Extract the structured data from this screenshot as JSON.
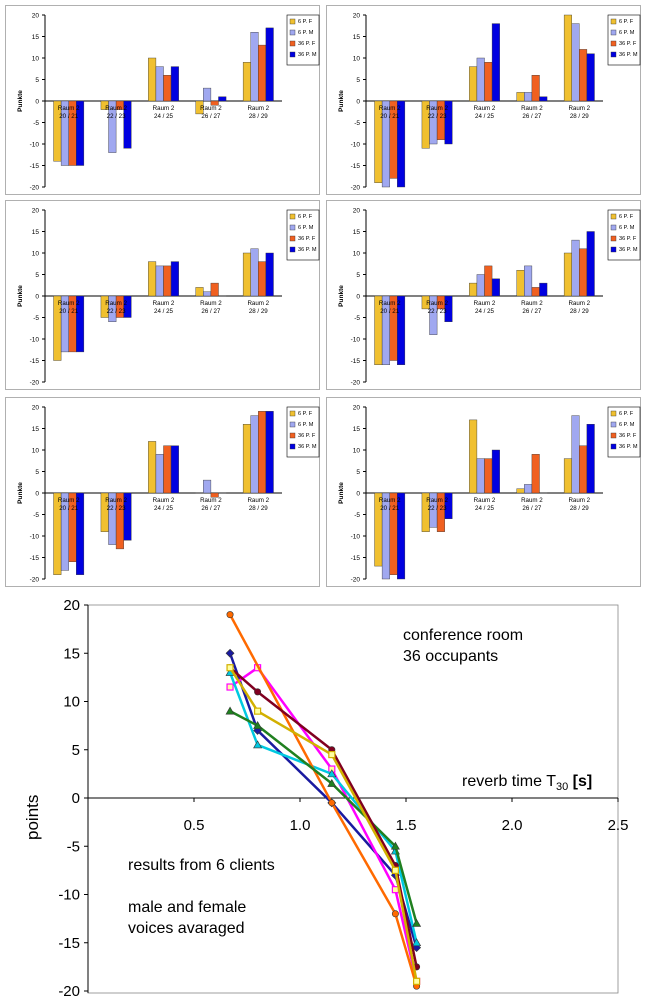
{
  "chart_data": [
    {
      "type": "bar",
      "ylabel": "Punkte",
      "ylim": [
        -20,
        20
      ],
      "yticks": [
        20,
        15,
        10,
        5,
        0,
        -5,
        -10,
        -15,
        -20
      ],
      "categories": [
        "Raum 2\n20 / 21",
        "Raum 2\n22 / 23",
        "Raum 2\n24 / 25",
        "Raum 2\n26 / 27",
        "Raum 2\n28 / 29"
      ],
      "legend": "top-right",
      "series": [
        {
          "name": "6 P. F",
          "color": "#f0c030",
          "values": [
            -14,
            -2,
            10,
            -3,
            9
          ]
        },
        {
          "name": "6 P. M",
          "color": "#a0a8f0",
          "values": [
            -15,
            -12,
            8,
            3,
            16
          ]
        },
        {
          "name": "36 P. F",
          "color": "#f06020",
          "values": [
            -15,
            -2,
            6,
            -1,
            13
          ]
        },
        {
          "name": "36 P. M",
          "color": "#0000e0",
          "values": [
            -15,
            -11,
            8,
            1,
            17
          ]
        }
      ]
    },
    {
      "type": "bar",
      "ylabel": "Punkte",
      "ylim": [
        -20,
        20
      ],
      "yticks": [
        20,
        15,
        10,
        5,
        0,
        -5,
        -10,
        -15,
        -20
      ],
      "categories": [
        "Raum 2\n20 / 21",
        "Raum 2\n22 / 23",
        "Raum 2\n24 / 25",
        "Raum 2\n26 / 27",
        "Raum 2\n28 / 29"
      ],
      "legend": "top-right",
      "series": [
        {
          "name": "6 P. F",
          "color": "#f0c030",
          "values": [
            -19,
            -11,
            8,
            2,
            20
          ]
        },
        {
          "name": "6 P. M",
          "color": "#a0a8f0",
          "values": [
            -20,
            -10,
            10,
            2,
            18
          ]
        },
        {
          "name": "36 P. F",
          "color": "#f06020",
          "values": [
            -18,
            -9,
            9,
            6,
            12
          ]
        },
        {
          "name": "36 P. M",
          "color": "#0000e0",
          "values": [
            -20,
            -10,
            18,
            1,
            11
          ]
        }
      ]
    },
    {
      "type": "bar",
      "ylabel": "Punkte",
      "ylim": [
        -20,
        20
      ],
      "yticks": [
        20,
        15,
        10,
        5,
        0,
        -5,
        -10,
        -15,
        -20
      ],
      "categories": [
        "Raum 2\n20 / 21",
        "Raum 2\n22 / 23",
        "Raum 2\n24 / 25",
        "Raum 2\n26 / 27",
        "Raum 2\n28 / 29"
      ],
      "legend": "top-right",
      "series": [
        {
          "name": "6 P. F",
          "color": "#f0c030",
          "values": [
            -15,
            -5,
            8,
            2,
            10
          ]
        },
        {
          "name": "6 P. M",
          "color": "#a0a8f0",
          "values": [
            -13,
            -6,
            7,
            1,
            11
          ]
        },
        {
          "name": "36 P. F",
          "color": "#f06020",
          "values": [
            -13,
            -5,
            7,
            3,
            8
          ]
        },
        {
          "name": "36 P. M",
          "color": "#0000e0",
          "values": [
            -13,
            -5,
            8,
            0,
            10
          ]
        }
      ]
    },
    {
      "type": "bar",
      "ylabel": "Punkte",
      "ylim": [
        -20,
        20
      ],
      "yticks": [
        20,
        15,
        10,
        5,
        0,
        -5,
        -10,
        -15,
        -20
      ],
      "categories": [
        "Raum 2\n20 / 21",
        "Raum 2\n22 / 23",
        "Raum 2\n24 / 25",
        "Raum 2\n26 / 27",
        "Raum 2\n28 / 29"
      ],
      "legend": "top-right",
      "series": [
        {
          "name": "6 P. F",
          "color": "#f0c030",
          "values": [
            -16,
            -3,
            3,
            6,
            10
          ]
        },
        {
          "name": "6 P. M",
          "color": "#a0a8f0",
          "values": [
            -16,
            -9,
            5,
            7,
            13
          ]
        },
        {
          "name": "36 P. F",
          "color": "#f06020",
          "values": [
            -15,
            -3,
            7,
            2,
            11
          ]
        },
        {
          "name": "36 P. M",
          "color": "#0000e0",
          "values": [
            -16,
            -6,
            4,
            3,
            15
          ]
        }
      ]
    },
    {
      "type": "bar",
      "ylabel": "Punkte",
      "ylim": [
        -20,
        20
      ],
      "yticks": [
        20,
        15,
        10,
        5,
        0,
        -5,
        -10,
        -15,
        -20
      ],
      "categories": [
        "Raum 2\n20 / 21",
        "Raum 2\n22 / 23",
        "Raum 2\n24 / 25",
        "Raum 2\n26 / 27",
        "Raum 2\n28 / 29"
      ],
      "legend": "top-right",
      "series": [
        {
          "name": "6 P. F",
          "color": "#f0c030",
          "values": [
            -19,
            -9,
            12,
            0,
            16
          ]
        },
        {
          "name": "6 P. M",
          "color": "#a0a8f0",
          "values": [
            -18,
            -12,
            9,
            3,
            18
          ]
        },
        {
          "name": "36 P. F",
          "color": "#f06020",
          "values": [
            -16,
            -13,
            11,
            -1,
            19
          ]
        },
        {
          "name": "36 P. M",
          "color": "#0000e0",
          "values": [
            -19,
            -11,
            11,
            0,
            19
          ]
        }
      ]
    },
    {
      "type": "bar",
      "ylabel": "Punkte",
      "ylim": [
        -20,
        20
      ],
      "yticks": [
        20,
        15,
        10,
        5,
        0,
        -5,
        -10,
        -15,
        -20
      ],
      "categories": [
        "Raum 2\n20 / 21",
        "Raum 2\n22 / 23",
        "Raum 2\n24 / 25",
        "Raum 2\n26 / 27",
        "Raum 2\n28 / 29"
      ],
      "legend": "top-right",
      "series": [
        {
          "name": "6 P. F",
          "color": "#f0c030",
          "values": [
            -17,
            -9,
            17,
            1,
            8
          ]
        },
        {
          "name": "6 P. M",
          "color": "#a0a8f0",
          "values": [
            -20,
            -8,
            8,
            2,
            18
          ]
        },
        {
          "name": "36 P. F",
          "color": "#f06020",
          "values": [
            -19,
            -9,
            8,
            9,
            11
          ]
        },
        {
          "name": "36 P. M",
          "color": "#0000e0",
          "values": [
            -20,
            -6,
            10,
            0,
            16
          ]
        }
      ]
    },
    {
      "type": "line",
      "ylabel": "points",
      "xlabel_text": "reverb time",
      "xlabel_symbol": "T",
      "xlabel_sub": "30",
      "xlabel_unit": "[s]",
      "xlim": [
        0,
        2.5
      ],
      "ylim": [
        -20,
        20
      ],
      "xticks": [
        0.5,
        1.0,
        1.5,
        2.0,
        2.5
      ],
      "xtick_labels": [
        "0.5",
        "1.0",
        "1.5",
        "2.0",
        "2.5"
      ],
      "yticks": [
        20,
        15,
        10,
        5,
        0,
        -5,
        -10,
        -15,
        -20
      ],
      "annotation_top": [
        "conference room",
        "36 occupants"
      ],
      "annotation_bottom": [
        "results from 6 clients",
        "",
        "male and female",
        "voices avaraged"
      ],
      "series": [
        {
          "color": "#1a1aa0",
          "marker": "diamond",
          "x": [
            0.67,
            0.8,
            1.15,
            1.45,
            1.55
          ],
          "y": [
            15,
            7,
            -0.5,
            -8,
            -15.5
          ]
        },
        {
          "color": "#ff00ff",
          "marker": "square",
          "x": [
            0.67,
            0.8,
            1.15,
            1.45,
            1.55
          ],
          "y": [
            11.5,
            13.5,
            3,
            -9.5,
            -19
          ]
        },
        {
          "color": "#00c8e0",
          "marker": "triangle",
          "x": [
            0.67,
            0.8,
            1.15,
            1.45,
            1.55
          ],
          "y": [
            13,
            5.5,
            2.5,
            -5.5,
            -15
          ]
        },
        {
          "color": "#ff6a00",
          "marker": "circle",
          "x": [
            0.67,
            1.15,
            1.45,
            1.55
          ],
          "y": [
            19,
            -0.5,
            -12,
            -19.5
          ]
        },
        {
          "color": "#208020",
          "marker": "triangle",
          "x": [
            0.67,
            0.8,
            1.15,
            1.45,
            1.55
          ],
          "y": [
            9,
            7.5,
            1.5,
            -5,
            -13
          ]
        },
        {
          "color": "#800020",
          "marker": "circle",
          "x": [
            0.67,
            0.8,
            1.15,
            1.45,
            1.55
          ],
          "y": [
            13.5,
            11,
            5,
            -7,
            -17.5
          ]
        },
        {
          "color": "#d2b000",
          "marker": "square",
          "x": [
            0.67,
            0.8,
            1.15,
            1.45,
            1.55
          ],
          "y": [
            13.5,
            9,
            4.5,
            -7.5,
            -19
          ]
        }
      ]
    }
  ]
}
